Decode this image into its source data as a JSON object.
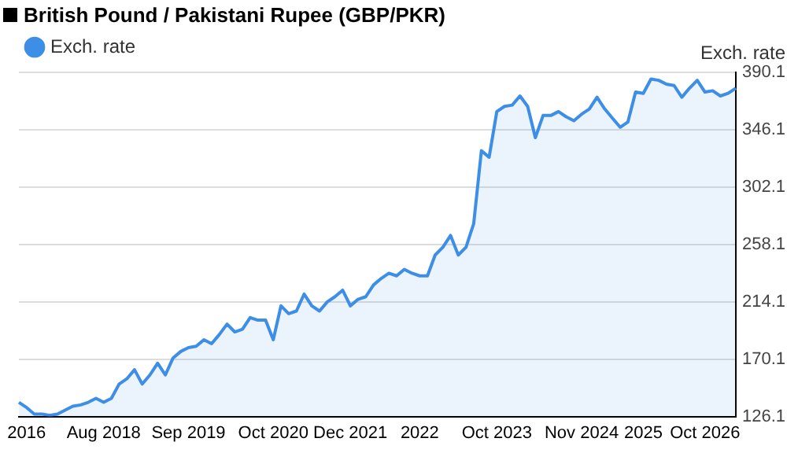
{
  "chart_data": {
    "type": "area",
    "title": "British Pound / Pakistani Rupee (GBP/PKR)",
    "ylabel": "Exch. rate",
    "categories": [
      null,
      "2016",
      null,
      null,
      null,
      null,
      null,
      null,
      null,
      null,
      null,
      "Aug 2018",
      null,
      null,
      null,
      null,
      null,
      null,
      null,
      null,
      null,
      null,
      "Sep 2019",
      null,
      null,
      null,
      null,
      null,
      null,
      null,
      null,
      null,
      null,
      "Oct 2020",
      null,
      null,
      null,
      null,
      null,
      null,
      null,
      null,
      null,
      "Dec 2021",
      null,
      null,
      null,
      null,
      null,
      null,
      null,
      null,
      "2022",
      null,
      null,
      null,
      null,
      null,
      null,
      null,
      null,
      null,
      "Oct 2023",
      null,
      null,
      null,
      null,
      null,
      null,
      null,
      null,
      null,
      null,
      "Nov 2024",
      null,
      null,
      null,
      null,
      null,
      null,
      null,
      "2025",
      null,
      null,
      null,
      null,
      null,
      null,
      null,
      "Oct 2026",
      null,
      null,
      null,
      null
    ],
    "series": [
      {
        "name": "Exch. rate",
        "color": "#3d8ee6",
        "values": [
          137,
          133,
          128,
          128,
          127,
          128,
          131,
          134,
          135,
          137,
          140,
          137,
          140,
          151,
          155,
          162,
          151,
          158,
          167,
          158,
          171,
          176,
          179,
          180,
          185,
          182,
          189,
          197,
          191,
          193,
          202,
          200,
          200,
          185,
          211,
          205,
          207,
          220,
          211,
          207,
          214,
          218,
          223,
          211,
          216,
          218,
          227,
          232,
          236,
          234,
          239,
          236,
          234,
          234,
          250,
          256,
          265,
          250,
          256,
          274,
          330,
          325,
          360,
          364,
          365,
          372,
          364,
          340,
          357,
          357,
          360,
          356,
          353,
          358,
          362,
          371,
          362,
          355,
          348,
          352,
          375,
          374,
          385,
          384,
          381,
          380,
          371,
          378,
          384,
          375,
          376,
          372,
          374,
          378
        ]
      }
    ],
    "ylim": [
      126.1,
      390.1
    ],
    "yticks": [
      126.1,
      170.1,
      214.1,
      258.1,
      302.1,
      346.1,
      390.1
    ],
    "grid": "y",
    "legend": "top left",
    "marker": "none",
    "line_style": "solid"
  }
}
